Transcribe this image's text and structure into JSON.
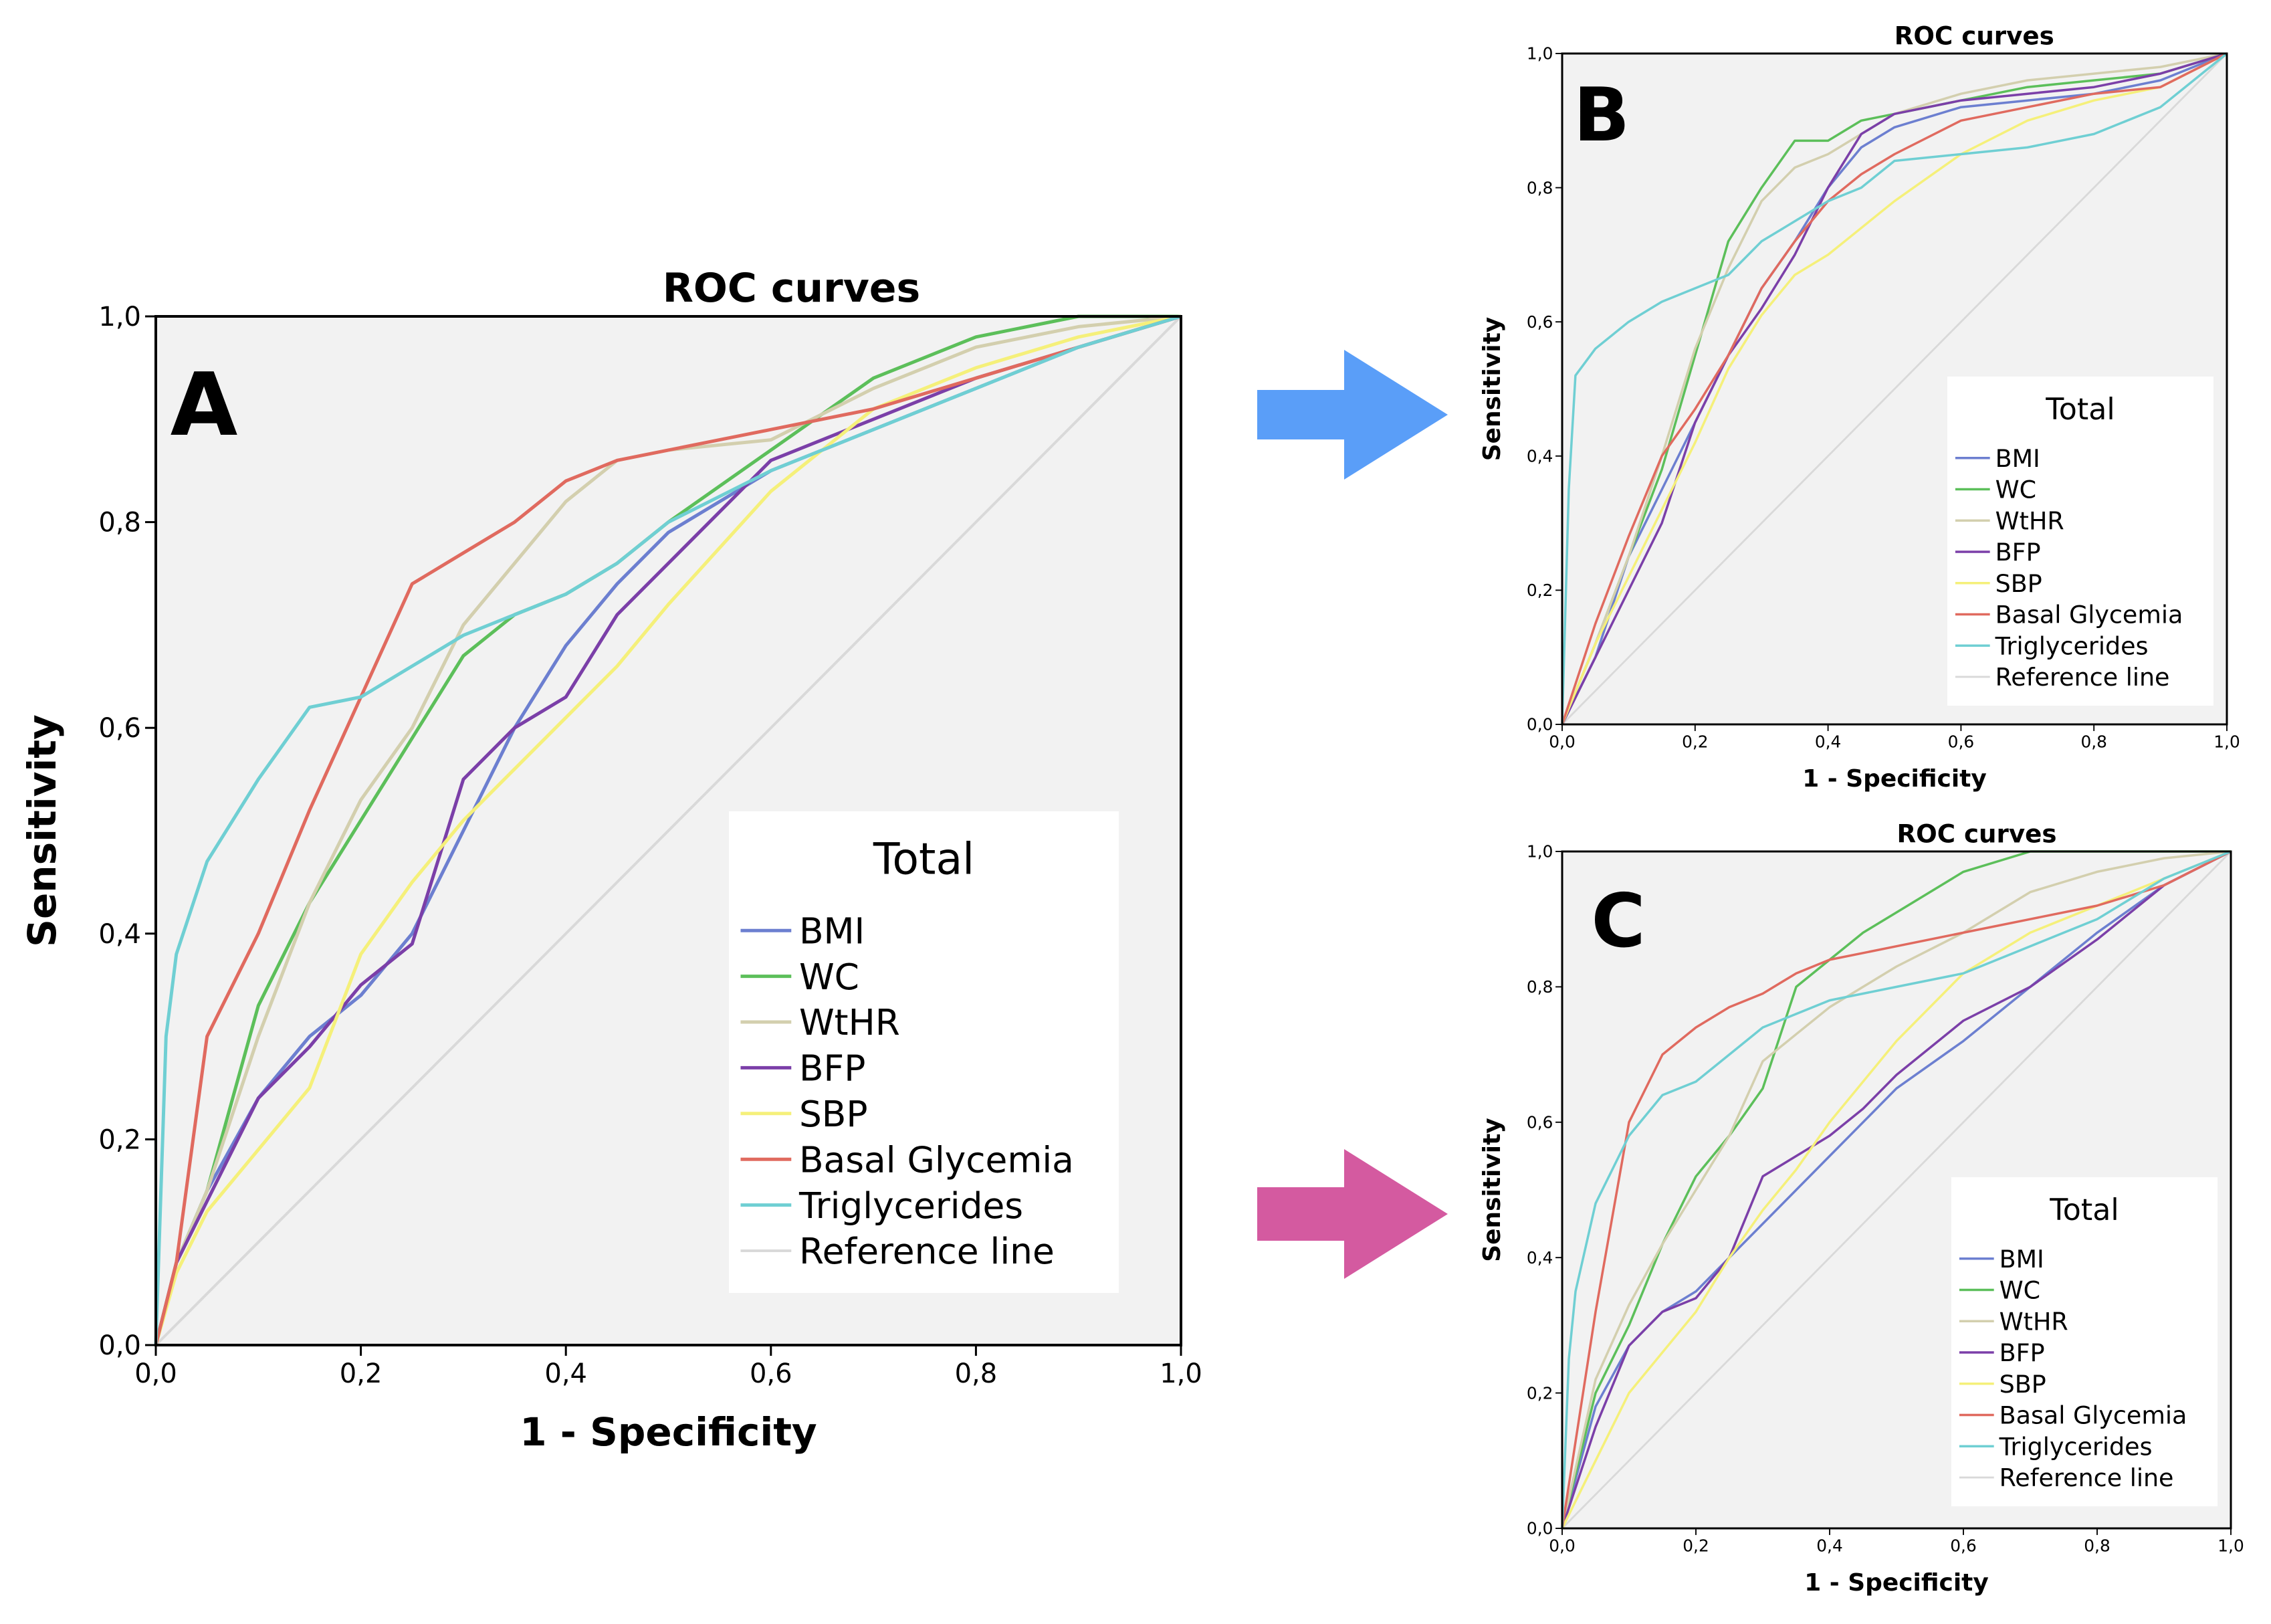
{
  "figure": {
    "arrow_b_color": "#5a9ef8",
    "arrow_c_color": "#d45aa0"
  },
  "chart_data": [
    {
      "panel": "A",
      "type": "line",
      "title": "ROC curves",
      "xlabel": "1 - Specificity",
      "ylabel": "Sensitivity",
      "xlim": [
        0,
        1
      ],
      "ylim": [
        0,
        1
      ],
      "xticks": [
        "0,0",
        "0,2",
        "0,4",
        "0,6",
        "0,8",
        "1,0"
      ],
      "yticks": [
        "0,0",
        "0,2",
        "0,4",
        "0,6",
        "0,8",
        "1,0"
      ],
      "legend_title": "Total",
      "legend_position": "bottom-right",
      "series": [
        {
          "name": "BMI",
          "color": "#6c7fd0",
          "x": [
            0,
            0.02,
            0.05,
            0.1,
            0.15,
            0.2,
            0.25,
            0.3,
            0.35,
            0.4,
            0.45,
            0.5,
            0.6,
            0.7,
            0.8,
            0.9,
            1.0
          ],
          "y": [
            0,
            0.08,
            0.15,
            0.24,
            0.3,
            0.34,
            0.4,
            0.5,
            0.6,
            0.68,
            0.74,
            0.79,
            0.85,
            0.89,
            0.93,
            0.97,
            1.0
          ]
        },
        {
          "name": "WC",
          "color": "#5cbf5a",
          "x": [
            0,
            0.02,
            0.05,
            0.1,
            0.15,
            0.2,
            0.25,
            0.3,
            0.35,
            0.4,
            0.45,
            0.5,
            0.6,
            0.7,
            0.8,
            0.9,
            1.0
          ],
          "y": [
            0,
            0.08,
            0.15,
            0.33,
            0.43,
            0.51,
            0.59,
            0.67,
            0.71,
            0.73,
            0.76,
            0.8,
            0.87,
            0.94,
            0.98,
            1.0,
            1.0
          ]
        },
        {
          "name": "WtHR",
          "color": "#d3cfae",
          "x": [
            0,
            0.02,
            0.05,
            0.1,
            0.15,
            0.2,
            0.25,
            0.3,
            0.35,
            0.4,
            0.45,
            0.5,
            0.6,
            0.7,
            0.8,
            0.9,
            1.0
          ],
          "y": [
            0,
            0.08,
            0.15,
            0.3,
            0.43,
            0.53,
            0.6,
            0.7,
            0.76,
            0.82,
            0.86,
            0.87,
            0.88,
            0.93,
            0.97,
            0.99,
            1.0
          ]
        },
        {
          "name": "BFP",
          "color": "#7b3fa8",
          "x": [
            0,
            0.02,
            0.05,
            0.1,
            0.15,
            0.2,
            0.25,
            0.3,
            0.35,
            0.4,
            0.45,
            0.5,
            0.6,
            0.7,
            0.8,
            0.9,
            1.0
          ],
          "y": [
            0,
            0.08,
            0.14,
            0.24,
            0.29,
            0.35,
            0.39,
            0.55,
            0.6,
            0.63,
            0.71,
            0.76,
            0.86,
            0.9,
            0.94,
            0.97,
            1.0
          ]
        },
        {
          "name": "SBP",
          "color": "#f5f07a",
          "x": [
            0,
            0.02,
            0.05,
            0.1,
            0.15,
            0.2,
            0.25,
            0.3,
            0.35,
            0.4,
            0.45,
            0.5,
            0.6,
            0.7,
            0.8,
            0.9,
            1.0
          ],
          "y": [
            0,
            0.07,
            0.13,
            0.19,
            0.25,
            0.38,
            0.45,
            0.51,
            0.56,
            0.61,
            0.66,
            0.72,
            0.83,
            0.91,
            0.95,
            0.98,
            1.0
          ]
        },
        {
          "name": "Basal Glycemia",
          "color": "#e06a5f",
          "x": [
            0,
            0.02,
            0.05,
            0.1,
            0.15,
            0.2,
            0.25,
            0.3,
            0.35,
            0.4,
            0.45,
            0.5,
            0.6,
            0.7,
            0.8,
            0.9,
            1.0
          ],
          "y": [
            0,
            0.08,
            0.3,
            0.4,
            0.52,
            0.63,
            0.74,
            0.77,
            0.8,
            0.84,
            0.86,
            0.87,
            0.89,
            0.91,
            0.94,
            0.97,
            1.0
          ]
        },
        {
          "name": "Triglycerides",
          "color": "#6fcfd3",
          "x": [
            0,
            0.01,
            0.02,
            0.05,
            0.1,
            0.15,
            0.2,
            0.25,
            0.3,
            0.35,
            0.4,
            0.45,
            0.5,
            0.6,
            0.7,
            0.8,
            0.9,
            1.0
          ],
          "y": [
            0,
            0.3,
            0.38,
            0.47,
            0.55,
            0.62,
            0.63,
            0.66,
            0.69,
            0.71,
            0.73,
            0.76,
            0.8,
            0.85,
            0.89,
            0.93,
            0.97,
            1.0
          ]
        },
        {
          "name": "Reference line",
          "color": "#d9d9d9",
          "x": [
            0,
            1
          ],
          "y": [
            0,
            1
          ]
        }
      ]
    },
    {
      "panel": "B",
      "type": "line",
      "title": "ROC curves",
      "xlabel": "1 - Specificity",
      "ylabel": "Sensitivity",
      "xlim": [
        0,
        1
      ],
      "ylim": [
        0,
        1
      ],
      "xticks": [
        "0,0",
        "0,2",
        "0,4",
        "0,6",
        "0,8",
        "1,0"
      ],
      "yticks": [
        "0,0",
        "0,2",
        "0,4",
        "0,6",
        "0,8",
        "1,0"
      ],
      "legend_title": "Total",
      "legend_position": "bottom-right",
      "series": [
        {
          "name": "BMI",
          "color": "#6c7fd0",
          "x": [
            0,
            0.05,
            0.1,
            0.15,
            0.2,
            0.25,
            0.3,
            0.35,
            0.4,
            0.45,
            0.5,
            0.6,
            0.7,
            0.8,
            0.9,
            1.0
          ],
          "y": [
            0,
            0.1,
            0.25,
            0.35,
            0.45,
            0.55,
            0.65,
            0.72,
            0.8,
            0.86,
            0.89,
            0.92,
            0.93,
            0.94,
            0.96,
            1.0
          ]
        },
        {
          "name": "WC",
          "color": "#5cbf5a",
          "x": [
            0,
            0.05,
            0.1,
            0.15,
            0.2,
            0.25,
            0.3,
            0.35,
            0.4,
            0.45,
            0.5,
            0.6,
            0.7,
            0.8,
            0.9,
            1.0
          ],
          "y": [
            0,
            0.12,
            0.25,
            0.38,
            0.55,
            0.72,
            0.8,
            0.87,
            0.87,
            0.9,
            0.91,
            0.93,
            0.95,
            0.96,
            0.97,
            1.0
          ]
        },
        {
          "name": "WtHR",
          "color": "#d3cfae",
          "x": [
            0,
            0.05,
            0.1,
            0.15,
            0.2,
            0.25,
            0.3,
            0.35,
            0.4,
            0.45,
            0.5,
            0.6,
            0.7,
            0.8,
            0.9,
            1.0
          ],
          "y": [
            0,
            0.12,
            0.25,
            0.4,
            0.56,
            0.68,
            0.78,
            0.83,
            0.85,
            0.88,
            0.91,
            0.94,
            0.96,
            0.97,
            0.98,
            1.0
          ]
        },
        {
          "name": "BFP",
          "color": "#7b3fa8",
          "x": [
            0,
            0.05,
            0.1,
            0.15,
            0.2,
            0.25,
            0.3,
            0.35,
            0.4,
            0.45,
            0.5,
            0.6,
            0.7,
            0.8,
            0.9,
            1.0
          ],
          "y": [
            0,
            0.1,
            0.2,
            0.3,
            0.45,
            0.55,
            0.62,
            0.7,
            0.8,
            0.88,
            0.91,
            0.93,
            0.94,
            0.95,
            0.97,
            1.0
          ]
        },
        {
          "name": "SBP",
          "color": "#f5f07a",
          "x": [
            0,
            0.05,
            0.1,
            0.15,
            0.2,
            0.25,
            0.3,
            0.35,
            0.4,
            0.45,
            0.5,
            0.6,
            0.7,
            0.8,
            0.9,
            1.0
          ],
          "y": [
            0,
            0.12,
            0.22,
            0.32,
            0.42,
            0.53,
            0.61,
            0.67,
            0.7,
            0.74,
            0.78,
            0.85,
            0.9,
            0.93,
            0.95,
            1.0
          ]
        },
        {
          "name": "Basal Glycemia",
          "color": "#e06a5f",
          "x": [
            0,
            0.05,
            0.1,
            0.15,
            0.2,
            0.25,
            0.3,
            0.35,
            0.4,
            0.45,
            0.5,
            0.6,
            0.7,
            0.8,
            0.9,
            1.0
          ],
          "y": [
            0,
            0.15,
            0.28,
            0.4,
            0.47,
            0.55,
            0.65,
            0.72,
            0.78,
            0.82,
            0.85,
            0.9,
            0.92,
            0.94,
            0.95,
            1.0
          ]
        },
        {
          "name": "Triglycerides",
          "color": "#6fcfd3",
          "x": [
            0,
            0.01,
            0.02,
            0.05,
            0.1,
            0.15,
            0.2,
            0.25,
            0.3,
            0.35,
            0.4,
            0.45,
            0.5,
            0.6,
            0.7,
            0.8,
            0.9,
            1.0
          ],
          "y": [
            0,
            0.35,
            0.52,
            0.56,
            0.6,
            0.63,
            0.65,
            0.67,
            0.72,
            0.75,
            0.78,
            0.8,
            0.84,
            0.85,
            0.86,
            0.88,
            0.92,
            1.0
          ]
        },
        {
          "name": "Reference line",
          "color": "#d9d9d9",
          "x": [
            0,
            1
          ],
          "y": [
            0,
            1
          ]
        }
      ]
    },
    {
      "panel": "C",
      "type": "line",
      "title": "ROC curves",
      "xlabel": "1 - Specificity",
      "ylabel": "Sensitivity",
      "xlim": [
        0,
        1
      ],
      "ylim": [
        0,
        1
      ],
      "xticks": [
        "0,0",
        "0,2",
        "0,4",
        "0,6",
        "0,8",
        "1,0"
      ],
      "yticks": [
        "0,0",
        "0,2",
        "0,4",
        "0,6",
        "0,8",
        "1,0"
      ],
      "legend_title": "Total",
      "legend_position": "bottom-right",
      "series": [
        {
          "name": "BMI",
          "color": "#6c7fd0",
          "x": [
            0,
            0.05,
            0.1,
            0.15,
            0.2,
            0.25,
            0.3,
            0.35,
            0.4,
            0.45,
            0.5,
            0.6,
            0.7,
            0.8,
            0.9,
            1.0
          ],
          "y": [
            0,
            0.18,
            0.27,
            0.32,
            0.35,
            0.4,
            0.45,
            0.5,
            0.55,
            0.6,
            0.65,
            0.72,
            0.8,
            0.88,
            0.95,
            1.0
          ]
        },
        {
          "name": "WC",
          "color": "#5cbf5a",
          "x": [
            0,
            0.05,
            0.1,
            0.15,
            0.2,
            0.25,
            0.3,
            0.35,
            0.4,
            0.45,
            0.5,
            0.6,
            0.7,
            0.8,
            0.9,
            1.0
          ],
          "y": [
            0,
            0.2,
            0.3,
            0.42,
            0.52,
            0.58,
            0.65,
            0.8,
            0.84,
            0.88,
            0.91,
            0.97,
            1.0,
            1.0,
            1.0,
            1.0
          ]
        },
        {
          "name": "WtHR",
          "color": "#d3cfae",
          "x": [
            0,
            0.05,
            0.1,
            0.15,
            0.2,
            0.25,
            0.3,
            0.35,
            0.4,
            0.45,
            0.5,
            0.6,
            0.7,
            0.8,
            0.9,
            1.0
          ],
          "y": [
            0,
            0.22,
            0.33,
            0.42,
            0.5,
            0.58,
            0.69,
            0.73,
            0.77,
            0.8,
            0.83,
            0.88,
            0.94,
            0.97,
            0.99,
            1.0
          ]
        },
        {
          "name": "BFP",
          "color": "#7b3fa8",
          "x": [
            0,
            0.05,
            0.1,
            0.15,
            0.2,
            0.25,
            0.3,
            0.35,
            0.4,
            0.45,
            0.5,
            0.6,
            0.7,
            0.8,
            0.9,
            1.0
          ],
          "y": [
            0,
            0.15,
            0.27,
            0.32,
            0.34,
            0.4,
            0.52,
            0.55,
            0.58,
            0.62,
            0.67,
            0.75,
            0.8,
            0.87,
            0.95,
            1.0
          ]
        },
        {
          "name": "SBP",
          "color": "#f5f07a",
          "x": [
            0,
            0.05,
            0.1,
            0.15,
            0.2,
            0.25,
            0.3,
            0.35,
            0.4,
            0.45,
            0.5,
            0.6,
            0.7,
            0.8,
            0.9,
            1.0
          ],
          "y": [
            0,
            0.1,
            0.2,
            0.26,
            0.32,
            0.4,
            0.47,
            0.53,
            0.6,
            0.66,
            0.72,
            0.82,
            0.88,
            0.92,
            0.96,
            1.0
          ]
        },
        {
          "name": "Basal Glycemia",
          "color": "#e06a5f",
          "x": [
            0,
            0.05,
            0.1,
            0.15,
            0.2,
            0.25,
            0.3,
            0.35,
            0.4,
            0.45,
            0.5,
            0.6,
            0.7,
            0.8,
            0.9,
            1.0
          ],
          "y": [
            0,
            0.32,
            0.6,
            0.7,
            0.74,
            0.77,
            0.79,
            0.82,
            0.84,
            0.85,
            0.86,
            0.88,
            0.9,
            0.92,
            0.95,
            1.0
          ]
        },
        {
          "name": "Triglycerides",
          "color": "#6fcfd3",
          "x": [
            0,
            0.01,
            0.02,
            0.05,
            0.1,
            0.15,
            0.2,
            0.25,
            0.3,
            0.35,
            0.4,
            0.45,
            0.5,
            0.6,
            0.7,
            0.8,
            0.9,
            1.0
          ],
          "y": [
            0,
            0.25,
            0.35,
            0.48,
            0.58,
            0.64,
            0.66,
            0.7,
            0.74,
            0.76,
            0.78,
            0.79,
            0.8,
            0.82,
            0.86,
            0.9,
            0.96,
            1.0
          ]
        },
        {
          "name": "Reference line",
          "color": "#d9d9d9",
          "x": [
            0,
            1
          ],
          "y": [
            0,
            1
          ]
        }
      ]
    }
  ]
}
